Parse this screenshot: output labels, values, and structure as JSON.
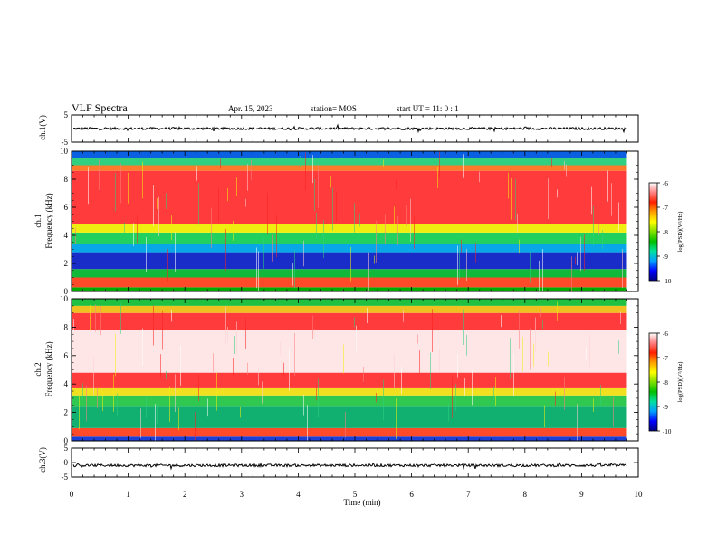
{
  "header": {
    "title": "VLF Spectra",
    "date": "Apr. 15, 2023",
    "station": "station= MOS",
    "start": "start  UT =   11: 0  : 1"
  },
  "chart_data": [
    {
      "type": "line",
      "id": "ch1-wave",
      "ylabel": "ch.1(V)",
      "ylim": [
        -5,
        5
      ],
      "yticks": [
        "5",
        "-5"
      ],
      "trace_level": 0
    },
    {
      "type": "heatmap",
      "id": "ch1-spec",
      "ylabel": "Frequency (kHz)",
      "channel_label": "ch.1",
      "ylim": [
        0,
        10
      ],
      "yticks": [
        "0",
        "2",
        "4",
        "6",
        "8",
        "10"
      ],
      "bands": [
        {
          "from": 0.0,
          "to": 0.3,
          "color": "#00aa00"
        },
        {
          "from": 0.3,
          "to": 1.0,
          "color": "#ff4a2a"
        },
        {
          "from": 1.0,
          "to": 1.6,
          "color": "#12b83a"
        },
        {
          "from": 1.6,
          "to": 2.8,
          "color": "#1a2cc8"
        },
        {
          "from": 2.8,
          "to": 3.4,
          "color": "#08a8e8"
        },
        {
          "from": 3.4,
          "to": 4.2,
          "color": "#22d060"
        },
        {
          "from": 4.2,
          "to": 4.8,
          "color": "#f0ee10"
        },
        {
          "from": 4.8,
          "to": 8.6,
          "color": "#ff3b3b"
        },
        {
          "from": 8.6,
          "to": 9.0,
          "color": "#ff7a2a"
        },
        {
          "from": 9.0,
          "to": 9.5,
          "color": "#30d080"
        },
        {
          "from": 9.5,
          "to": 10.0,
          "color": "#0a60e0"
        }
      ]
    },
    {
      "type": "heatmap",
      "id": "ch2-spec",
      "ylabel": "Frequency (kHz)",
      "channel_label": "ch.2",
      "ylim": [
        0,
        10
      ],
      "yticks": [
        "0",
        "2",
        "4",
        "6",
        "8",
        "10"
      ],
      "bands": [
        {
          "from": 0.0,
          "to": 0.3,
          "color": "#1a40d8"
        },
        {
          "from": 0.3,
          "to": 0.9,
          "color": "#ff4a2a"
        },
        {
          "from": 0.9,
          "to": 2.4,
          "color": "#12b070"
        },
        {
          "from": 2.4,
          "to": 3.2,
          "color": "#30c850"
        },
        {
          "from": 3.2,
          "to": 3.7,
          "color": "#f0e020"
        },
        {
          "from": 3.7,
          "to": 4.8,
          "color": "#ff3b3b"
        },
        {
          "from": 4.8,
          "to": 7.8,
          "color": "#ffe6e6"
        },
        {
          "from": 7.8,
          "to": 9.0,
          "color": "#ff3b3b"
        },
        {
          "from": 9.0,
          "to": 9.5,
          "color": "#f0c020"
        },
        {
          "from": 9.5,
          "to": 10.0,
          "color": "#20c040"
        }
      ]
    },
    {
      "type": "line",
      "id": "ch3-wave",
      "ylabel": "ch.3(V)",
      "ylim": [
        -5,
        5
      ],
      "yticks": [
        "5",
        "0",
        "-5"
      ],
      "trace_level": -1.0
    }
  ],
  "x_axis": {
    "xlabel": "Time  (min)",
    "xlim": [
      0,
      10
    ],
    "ticks": [
      "0",
      "1",
      "2",
      "3",
      "4",
      "5",
      "6",
      "7",
      "8",
      "9",
      "10"
    ],
    "data_end": 9.8
  },
  "colorbar": {
    "label": "log(PSD)(V²/Hz)",
    "range": [
      -10,
      -6
    ],
    "ticks": [
      "-6",
      "-7",
      "-8",
      "-9",
      "-10"
    ],
    "colors": [
      "#000080",
      "#0000ff",
      "#00a0ff",
      "#00e0a0",
      "#00c000",
      "#80e000",
      "#ffff00",
      "#ffa000",
      "#ff2000",
      "#ff8080",
      "#ffffff"
    ]
  }
}
